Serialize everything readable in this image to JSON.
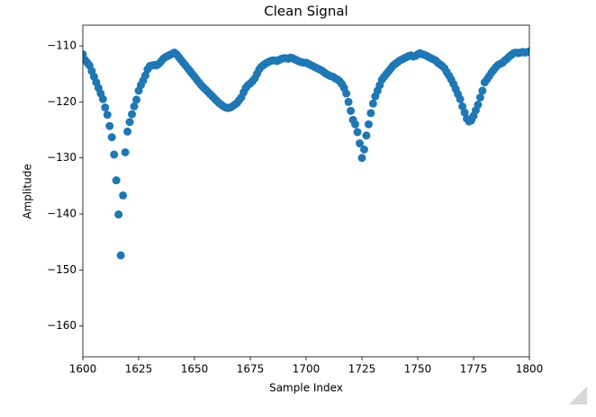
{
  "chart_data": {
    "type": "scatter",
    "title": "Clean Signal",
    "x_label": "Sample Index",
    "y_label": "Amplitude",
    "color": "#1f77b4",
    "x": [
      1600,
      1601,
      1602,
      1603,
      1604,
      1605,
      1606,
      1607,
      1608,
      1609,
      1610,
      1611,
      1612,
      1613,
      1614,
      1615,
      1616,
      1617,
      1618,
      1619,
      1620,
      1621,
      1622,
      1623,
      1624,
      1625,
      1626,
      1627,
      1628,
      1629,
      1630,
      1631,
      1632,
      1633,
      1634,
      1635,
      1636,
      1637,
      1638,
      1639,
      1640,
      1641,
      1642,
      1643,
      1644,
      1645,
      1646,
      1647,
      1648,
      1649,
      1650,
      1651,
      1652,
      1653,
      1654,
      1655,
      1656,
      1657,
      1658,
      1659,
      1660,
      1661,
      1662,
      1663,
      1664,
      1665,
      1666,
      1667,
      1668,
      1669,
      1670,
      1671,
      1672,
      1673,
      1674,
      1675,
      1676,
      1677,
      1678,
      1679,
      1680,
      1681,
      1682,
      1683,
      1684,
      1685,
      1686,
      1687,
      1688,
      1689,
      1690,
      1691,
      1692,
      1693,
      1694,
      1695,
      1696,
      1697,
      1698,
      1699,
      1700,
      1701,
      1702,
      1703,
      1704,
      1705,
      1706,
      1707,
      1708,
      1709,
      1710,
      1711,
      1712,
      1713,
      1714,
      1715,
      1716,
      1717,
      1718,
      1719,
      1720,
      1721,
      1722,
      1723,
      1724,
      1725,
      1726,
      1727,
      1728,
      1729,
      1730,
      1731,
      1732,
      1733,
      1734,
      1735,
      1736,
      1737,
      1738,
      1739,
      1740,
      1741,
      1742,
      1743,
      1744,
      1745,
      1746,
      1747,
      1748,
      1749,
      1750,
      1751,
      1752,
      1753,
      1754,
      1755,
      1756,
      1757,
      1758,
      1759,
      1760,
      1761,
      1762,
      1763,
      1764,
      1765,
      1766,
      1767,
      1768,
      1769,
      1770,
      1771,
      1772,
      1773,
      1774,
      1775,
      1776,
      1777,
      1778,
      1779,
      1780,
      1781,
      1782,
      1783,
      1784,
      1785,
      1786,
      1787,
      1788,
      1789,
      1790,
      1791,
      1792,
      1793,
      1794,
      1795,
      1796,
      1797,
      1798,
      1799,
      1800
    ],
    "values": [
      -111.5,
      -112.5,
      -113,
      -113.5,
      -114.5,
      -115.5,
      -116.5,
      -117.5,
      -118.5,
      -119.5,
      -121,
      -122.3,
      -124.3,
      -126.3,
      -129.4,
      -134,
      -140.1,
      -147.4,
      -136.7,
      -129,
      -125.3,
      -123.6,
      -122.2,
      -120.8,
      -119.6,
      -118,
      -117,
      -116.2,
      -115.3,
      -114.2,
      -113.6,
      -113.5,
      -113.4,
      -113.5,
      -113.2,
      -112.8,
      -112.3,
      -112,
      -111.8,
      -111.6,
      -111.4,
      -111.2,
      -111.5,
      -112,
      -112.5,
      -113,
      -113.5,
      -114,
      -114.5,
      -115,
      -115.5,
      -116,
      -116.5,
      -117,
      -117.4,
      -117.8,
      -118.2,
      -118.6,
      -119,
      -119.4,
      -119.8,
      -120.2,
      -120.5,
      -120.8,
      -121,
      -121.1,
      -121,
      -120.8,
      -120.5,
      -120.2,
      -119.7,
      -119.2,
      -118.3,
      -117.5,
      -117,
      -116.7,
      -116.3,
      -115.8,
      -115,
      -114.2,
      -113.7,
      -113.4,
      -113.1,
      -112.9,
      -112.7,
      -112.6,
      -112.6,
      -112.7,
      -112.5,
      -112.3,
      -112.2,
      -112.2,
      -112.3,
      -112.1,
      -112.2,
      -112.4,
      -112.6,
      -112.8,
      -112.9,
      -113,
      -113,
      -113.2,
      -113.4,
      -113.6,
      -113.8,
      -114,
      -114.2,
      -114.4,
      -114.7,
      -115,
      -115.2,
      -115.4,
      -115.5,
      -115.8,
      -116,
      -116.3,
      -116.8,
      -117.5,
      -118.5,
      -120,
      -121.6,
      -123.2,
      -124,
      -125.4,
      -127.4,
      -130,
      -128.5,
      -126,
      -124,
      -122,
      -120.3,
      -119,
      -118,
      -117,
      -116,
      -115.5,
      -115,
      -114.5,
      -114,
      -113.5,
      -113.2,
      -112.9,
      -112.6,
      -112.4,
      -112.2,
      -112,
      -111.8,
      -111.7,
      -111.9,
      -111.8,
      -111.5,
      -111.3,
      -111.5,
      -111.6,
      -111.8,
      -112,
      -112.2,
      -112.4,
      -112.6,
      -113,
      -113.3,
      -113.6,
      -114,
      -114.7,
      -115.3,
      -116,
      -116.8,
      -117.7,
      -118.6,
      -119.5,
      -120.8,
      -121.9,
      -123,
      -123.5,
      -123.3,
      -122.5,
      -121.5,
      -120.5,
      -119.2,
      -118,
      -116.5,
      -116,
      -115.4,
      -114.8,
      -114.3,
      -113.8,
      -113.4,
      -113.2,
      -113,
      -112.6,
      -112.3,
      -111.9,
      -111.6,
      -111.3,
      -111.2,
      -111.3,
      -111.2,
      -111.1,
      -111.2,
      -111.1,
      -111
    ],
    "xlim": [
      1600,
      1800
    ],
    "xticks": [
      1600,
      1625,
      1650,
      1675,
      1700,
      1725,
      1750,
      1775,
      1800
    ],
    "ylim": [
      -165.5,
      -106.3
    ],
    "yticks": [
      {
        "value": -110,
        "label": "−110"
      },
      {
        "value": -120,
        "label": "−120"
      },
      {
        "value": -130,
        "label": "−130"
      },
      {
        "value": -140,
        "label": "−140"
      },
      {
        "value": -150,
        "label": "−150"
      },
      {
        "value": -160,
        "label": "−160"
      }
    ],
    "grid": false
  }
}
